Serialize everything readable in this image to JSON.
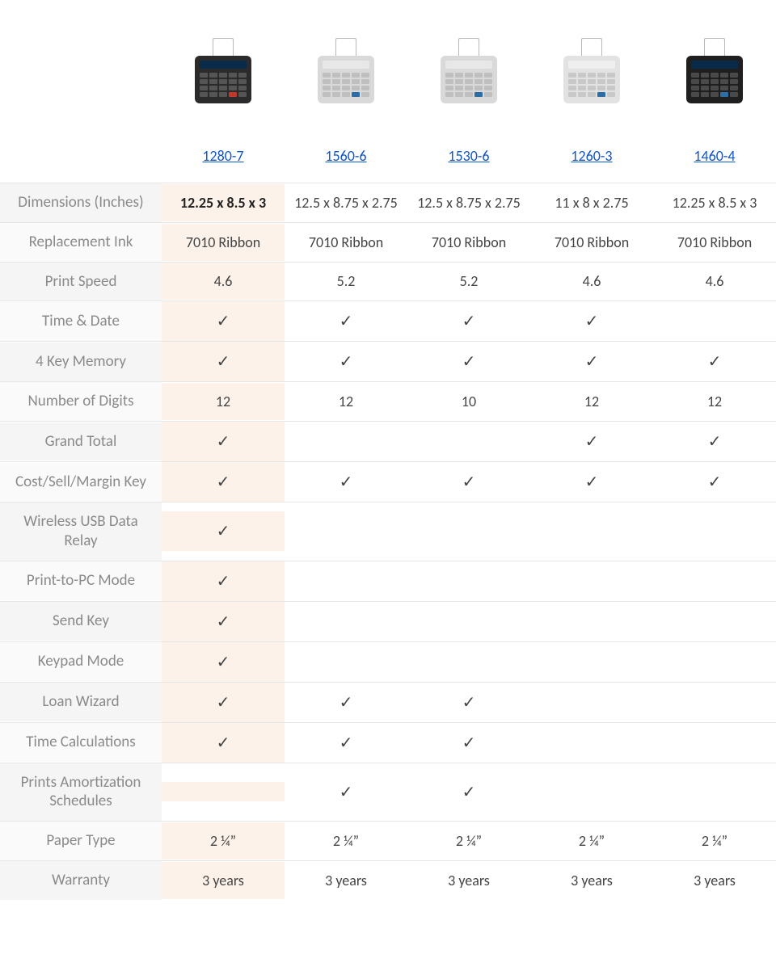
{
  "colors": {
    "link": "#1155cc",
    "highlight_bg": "#fdf2e9",
    "row_label_text": "#8a8a8a",
    "value_text": "#444444",
    "border": "#e6e6e6",
    "label_bg_a": "#fafafa",
    "label_bg_b": "#f5f5f5"
  },
  "check_glyph": "✓",
  "products": [
    {
      "model": "1280-7",
      "highlight": true,
      "calc_body": "#2b2b2b",
      "calc_screen": "#0a2a4a",
      "key_color": "#555555",
      "accent_key": "#c0392b"
    },
    {
      "model": "1560-6",
      "highlight": false,
      "calc_body": "#d9d9d9",
      "calc_screen": "#e8e8e8",
      "key_color": "#bfbfbf",
      "accent_key": "#2e6da4"
    },
    {
      "model": "1530-6",
      "highlight": false,
      "calc_body": "#d9d9d9",
      "calc_screen": "#e8e8e8",
      "key_color": "#bfbfbf",
      "accent_key": "#2e6da4"
    },
    {
      "model": "1260-3",
      "highlight": false,
      "calc_body": "#e2e2e2",
      "calc_screen": "#eeeeee",
      "key_color": "#c8c8c8",
      "accent_key": "#2e6da4"
    },
    {
      "model": "1460-4",
      "highlight": false,
      "calc_body": "#1f1f1f",
      "calc_screen": "#0a2a4a",
      "key_color": "#4a4a4a",
      "accent_key": "#2e6da4"
    }
  ],
  "rows": [
    {
      "label": "Dimensions (Inches)",
      "bold_first": true,
      "values": [
        "12.25 x 8.5 x 3",
        "12.5 x 8.75 x 2.75",
        "12.5 x 8.75 x 2.75",
        "11 x 8 x 2.75",
        "12.25 x 8.5 x 3"
      ]
    },
    {
      "label": "Replacement Ink",
      "values": [
        "7010 Ribbon",
        "7010 Ribbon",
        "7010 Ribbon",
        "7010 Ribbon",
        "7010 Ribbon"
      ]
    },
    {
      "label": "Print Speed",
      "values": [
        "4.6",
        "5.2",
        "5.2",
        "4.6",
        "4.6"
      ]
    },
    {
      "label": "Time & Date",
      "values": [
        "✓",
        "✓",
        "✓",
        "✓",
        ""
      ]
    },
    {
      "label": "4 Key Memory",
      "values": [
        "✓",
        "✓",
        "✓",
        "✓",
        "✓"
      ]
    },
    {
      "label": "Number of Digits",
      "values": [
        "12",
        "12",
        "10",
        "12",
        "12"
      ]
    },
    {
      "label": "Grand Total",
      "values": [
        "✓",
        "",
        "",
        "✓",
        "✓"
      ]
    },
    {
      "label": "Cost/Sell/Margin Key",
      "values": [
        "✓",
        "✓",
        "✓",
        "✓",
        "✓"
      ]
    },
    {
      "label": "Wireless USB Data Relay",
      "values": [
        "✓",
        "",
        "",
        "",
        ""
      ]
    },
    {
      "label": "Print-to-PC Mode",
      "values": [
        "✓",
        "",
        "",
        "",
        ""
      ]
    },
    {
      "label": "Send Key",
      "values": [
        "✓",
        "",
        "",
        "",
        ""
      ]
    },
    {
      "label": "Keypad Mode",
      "values": [
        "✓",
        "",
        "",
        "",
        ""
      ]
    },
    {
      "label": "Loan Wizard",
      "values": [
        "✓",
        "✓",
        "✓",
        "",
        ""
      ]
    },
    {
      "label": "Time Calculations",
      "values": [
        "✓",
        "✓",
        "✓",
        "",
        ""
      ]
    },
    {
      "label": "Prints Amortization Schedules",
      "values": [
        "",
        "✓",
        "✓",
        "",
        ""
      ]
    },
    {
      "label": "Paper Type",
      "values": [
        "2 ¼”",
        "2 ¼”",
        "2 ¼”",
        "2 ¼”",
        "2 ¼”"
      ]
    },
    {
      "label": "Warranty",
      "values": [
        "3 years",
        "3 years",
        "3 years",
        "3 years",
        "3 years"
      ]
    }
  ]
}
